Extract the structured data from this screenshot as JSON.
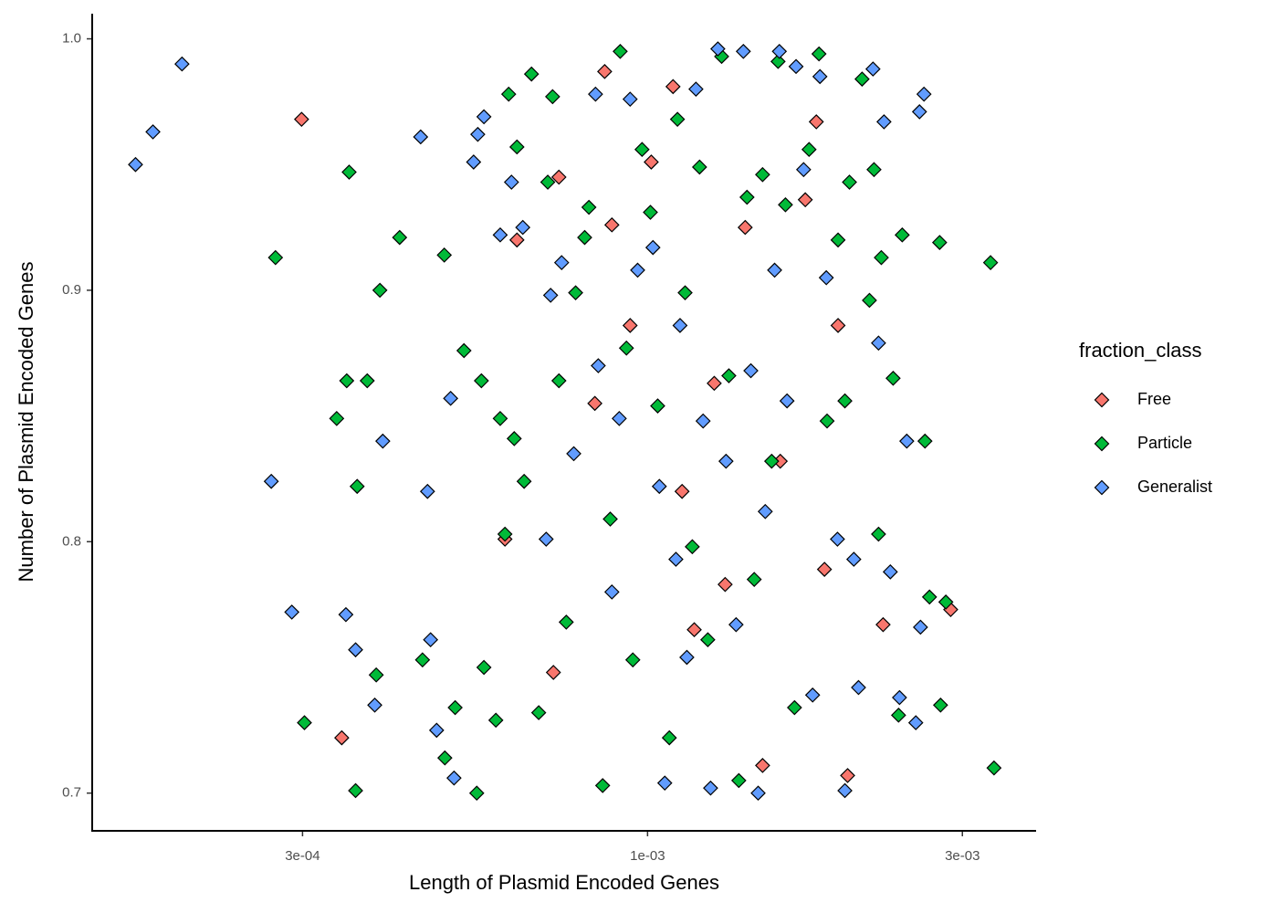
{
  "chart_data": {
    "type": "scatter",
    "x_label": "Length of Plasmid Encoded Genes",
    "y_label": "Number of Plasmid Encoded Genes",
    "x_scale": "log",
    "xlim": [
      0.000144,
      0.00388
    ],
    "ylim": [
      0.685,
      1.01
    ],
    "xticks": [
      {
        "value": 0.0003,
        "label": "3e-04"
      },
      {
        "value": 0.001,
        "label": "1e-03"
      },
      {
        "value": 0.003,
        "label": "3e-03"
      }
    ],
    "yticks": [
      0.7,
      0.8,
      0.9,
      {
        "value": 1.0,
        "label": "1.0"
      }
    ],
    "grid": false,
    "legend_title": "fraction_class",
    "legend_position": "right",
    "series": [
      {
        "name": "Free",
        "color": "#F8766D",
        "x": [
          0.000299,
          0.000344,
          0.000608,
          0.000634,
          0.00072,
          0.000734,
          0.000832,
          0.000861,
          0.000883,
          0.000941,
          0.001013,
          0.001093,
          0.001128,
          0.001177,
          0.001262,
          0.001311,
          0.001406,
          0.001494,
          0.001589,
          0.001734,
          0.001802,
          0.001854,
          0.001944,
          0.00201,
          0.002275,
          0.00288
        ],
        "y": [
          0.968,
          0.722,
          0.801,
          0.92,
          0.748,
          0.945,
          0.855,
          0.987,
          0.926,
          0.886,
          0.951,
          0.981,
          0.82,
          0.765,
          0.863,
          0.783,
          0.925,
          0.711,
          0.832,
          0.936,
          0.967,
          0.789,
          0.886,
          0.707,
          0.767,
          0.773
        ]
      },
      {
        "name": "Particle",
        "color": "#00BA38",
        "x": [
          0.000273,
          0.000302,
          0.000338,
          0.00035,
          0.000353,
          0.000361,
          0.000363,
          0.000376,
          0.000388,
          0.000393,
          0.000421,
          0.000456,
          0.000492,
          0.000493,
          0.000511,
          0.000527,
          0.000551,
          0.00056,
          0.000565,
          0.000589,
          0.000598,
          0.000608,
          0.000616,
          0.000628,
          0.000634,
          0.00065,
          0.000667,
          0.000684,
          0.000706,
          0.000718,
          0.000734,
          0.000753,
          0.000778,
          0.000803,
          0.000815,
          0.000855,
          0.000878,
          0.000909,
          0.000929,
          0.00095,
          0.000981,
          0.00101,
          0.001036,
          0.001079,
          0.00111,
          0.00114,
          0.001169,
          0.001199,
          0.001234,
          0.001295,
          0.001328,
          0.001375,
          0.001415,
          0.001451,
          0.001494,
          0.001542,
          0.001577,
          0.001618,
          0.00167,
          0.001757,
          0.001819,
          0.001871,
          0.001944,
          0.001991,
          0.002023,
          0.002114,
          0.002169,
          0.002204,
          0.002239,
          0.002261,
          0.002356,
          0.002401,
          0.002432,
          0.002633,
          0.002675,
          0.002771,
          0.002832,
          0.00278,
          0.00331,
          0.00335
        ],
        "y": [
          0.913,
          0.728,
          0.849,
          0.864,
          0.947,
          0.701,
          0.822,
          0.864,
          0.747,
          0.9,
          0.921,
          0.753,
          0.914,
          0.714,
          0.734,
          0.876,
          0.7,
          0.864,
          0.75,
          0.729,
          0.849,
          0.803,
          0.978,
          0.841,
          0.957,
          0.824,
          0.986,
          0.732,
          0.943,
          0.977,
          0.864,
          0.768,
          0.899,
          0.921,
          0.933,
          0.703,
          0.809,
          0.995,
          0.877,
          0.753,
          0.956,
          0.931,
          0.854,
          0.722,
          0.968,
          0.899,
          0.798,
          0.949,
          0.761,
          0.993,
          0.866,
          0.705,
          0.937,
          0.785,
          0.946,
          0.832,
          0.991,
          0.934,
          0.734,
          0.956,
          0.994,
          0.848,
          0.92,
          0.856,
          0.943,
          0.984,
          0.896,
          0.948,
          0.803,
          0.913,
          0.865,
          0.731,
          0.922,
          0.84,
          0.778,
          0.919,
          0.776,
          0.735,
          0.911,
          0.71
        ]
      },
      {
        "name": "Generalist",
        "color": "#619CFF",
        "x": [
          0.0001675,
          0.000178,
          0.000197,
          0.000269,
          0.000289,
          0.000349,
          0.000361,
          0.000386,
          0.000397,
          0.000453,
          0.000464,
          0.000469,
          0.000479,
          0.000503,
          0.000509,
          0.000545,
          0.000553,
          0.000565,
          0.000598,
          0.000622,
          0.000647,
          0.000702,
          0.000713,
          0.000741,
          0.000773,
          0.000834,
          0.000842,
          0.000883,
          0.000906,
          0.000941,
          0.000966,
          0.001019,
          0.001042,
          0.001062,
          0.001104,
          0.00112,
          0.001147,
          0.001184,
          0.001214,
          0.001246,
          0.001278,
          0.001315,
          0.001362,
          0.001397,
          0.001434,
          0.001471,
          0.001508,
          0.001558,
          0.001584,
          0.001627,
          0.001679,
          0.001724,
          0.001779,
          0.001825,
          0.001866,
          0.00194,
          0.001991,
          0.002054,
          0.002088,
          0.002196,
          0.002239,
          0.002282,
          0.002333,
          0.002409,
          0.002471,
          0.00255,
          0.002592,
          0.002624,
          0.002583
        ],
        "y": [
          0.95,
          0.963,
          0.99,
          0.824,
          0.772,
          0.771,
          0.757,
          0.735,
          0.84,
          0.961,
          0.82,
          0.761,
          0.725,
          0.857,
          0.706,
          0.951,
          0.962,
          0.969,
          0.922,
          0.943,
          0.925,
          0.801,
          0.898,
          0.911,
          0.835,
          0.978,
          0.87,
          0.78,
          0.849,
          0.976,
          0.908,
          0.917,
          0.822,
          0.704,
          0.793,
          0.886,
          0.754,
          0.98,
          0.848,
          0.702,
          0.996,
          0.832,
          0.767,
          0.995,
          0.868,
          0.7,
          0.812,
          0.908,
          0.995,
          0.856,
          0.989,
          0.948,
          0.739,
          0.985,
          0.905,
          0.801,
          0.701,
          0.793,
          0.742,
          0.988,
          0.879,
          0.967,
          0.788,
          0.738,
          0.84,
          0.728,
          0.766,
          0.978,
          0.971
        ]
      }
    ]
  }
}
